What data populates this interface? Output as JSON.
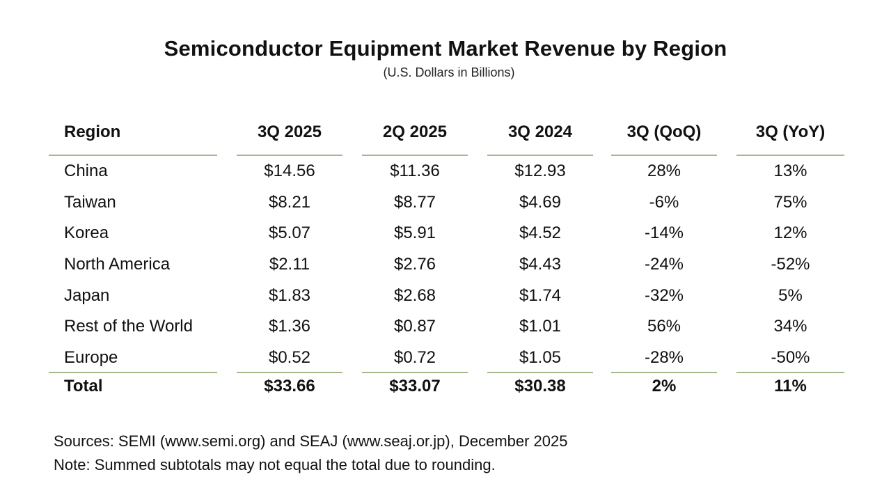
{
  "title": "Semiconductor Equipment Market Revenue by Region",
  "subtitle": "(U.S. Dollars in Billions)",
  "columns": [
    "Region",
    "3Q 2025",
    "2Q 2025",
    "3Q 2024",
    "3Q (QoQ)",
    "3Q (YoY)"
  ],
  "rows": [
    [
      "China",
      "$14.56",
      "$11.36",
      "$12.93",
      "28%",
      "13%"
    ],
    [
      "Taiwan",
      "$8.21",
      "$8.77",
      "$4.69",
      "-6%",
      "75%"
    ],
    [
      "Korea",
      "$5.07",
      "$5.91",
      "$4.52",
      "-14%",
      "12%"
    ],
    [
      "North America",
      "$2.11",
      "$2.76",
      "$4.43",
      "-24%",
      "-52%"
    ],
    [
      "Japan",
      "$1.83",
      "$2.68",
      "$1.74",
      "-32%",
      "5%"
    ],
    [
      "Rest of the World",
      "$1.36",
      "$0.87",
      "$1.01",
      "56%",
      "34%"
    ],
    [
      "Europe",
      "$0.52",
      "$0.72",
      "$1.05",
      "-28%",
      "-50%"
    ]
  ],
  "total": [
    "Total",
    "$33.66",
    "$33.07",
    "$30.38",
    "2%",
    "11%"
  ],
  "notes": {
    "sources": "Sources: SEMI (www.semi.org) and SEAJ (www.seaj.or.jp), December 2025",
    "note": "Note: Summed subtotals may not equal the total due to rounding."
  },
  "colors": {
    "rule": "#a3b98c"
  }
}
